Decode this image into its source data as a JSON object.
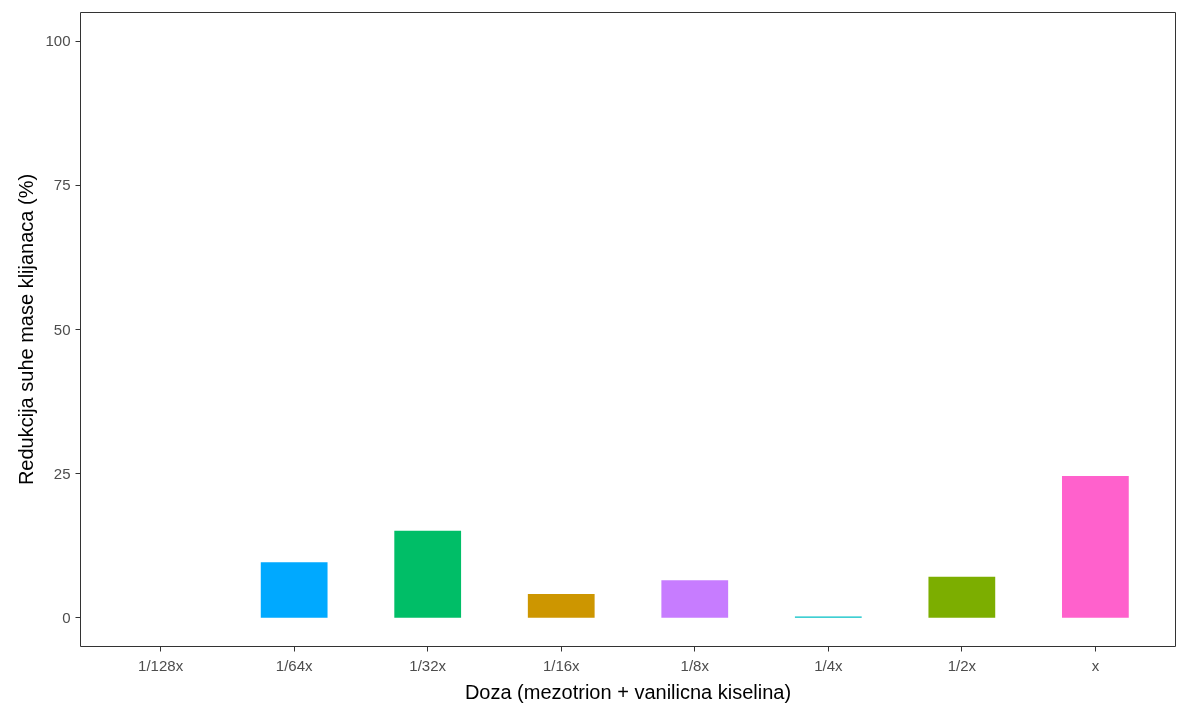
{
  "chart_data": {
    "type": "bar",
    "xlabel": "Doza (mezotrion + vanilicna kiselina)",
    "ylabel": "Redukcija suhe mase klijanaca (%)",
    "categories": [
      "1/128x",
      "1/64x",
      "1/32x",
      "1/16x",
      "1/8x",
      "1/4x",
      "1/2x",
      "x"
    ],
    "values": [
      0,
      9.6,
      15.1,
      4.1,
      6.5,
      0.2,
      7.1,
      24.6
    ],
    "colors": [
      "#f8766d",
      "#00a9ff",
      "#00be67",
      "#cd9600",
      "#c77cff",
      "#00bfc4",
      "#7cae00",
      "#ff61cc"
    ],
    "ylim": [
      -5,
      105
    ],
    "yticks": [
      0,
      25,
      50,
      75,
      100
    ],
    "grid": false
  }
}
